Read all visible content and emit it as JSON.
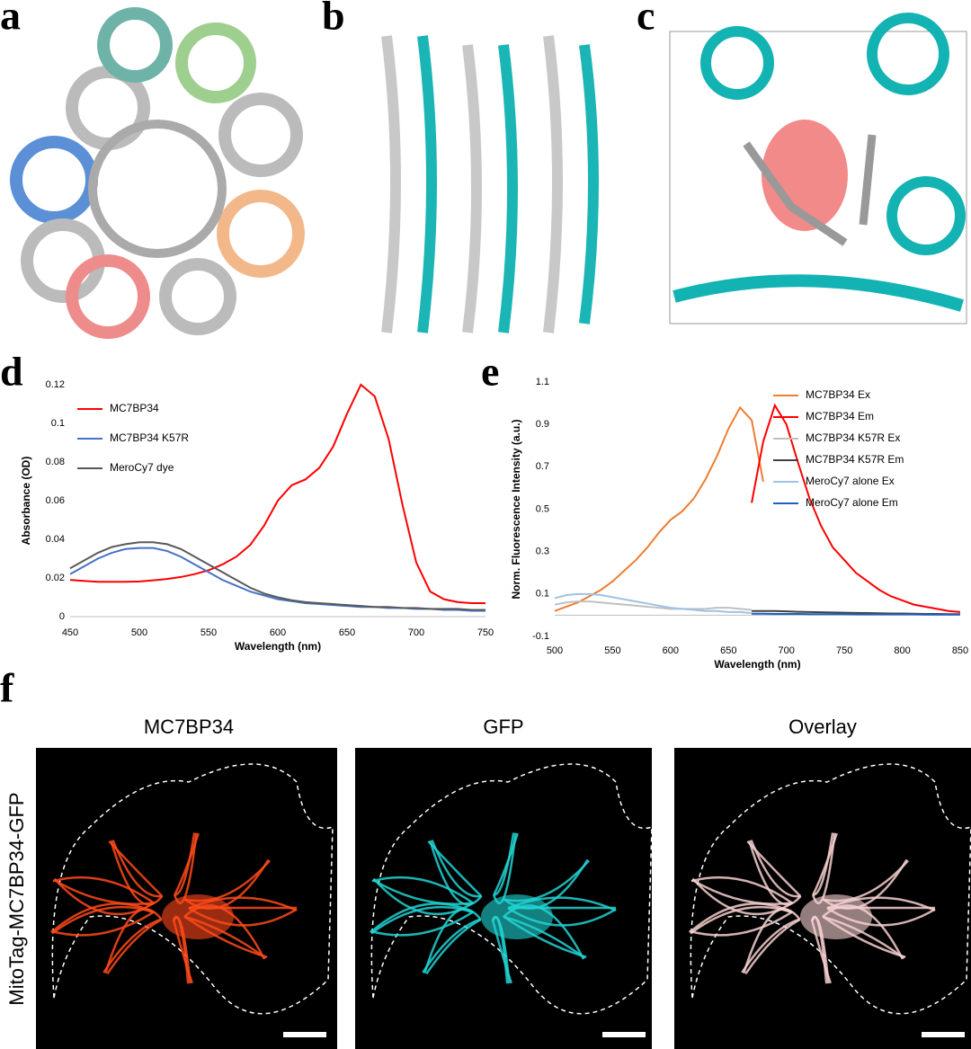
{
  "panel_labels": [
    "a",
    "b",
    "c",
    "d",
    "e",
    "f"
  ],
  "micrographs": {
    "titles": [
      "MC7BP34",
      "GFP",
      "Overlay"
    ],
    "row_label": "MitoTag-MC7BP34-GFP"
  },
  "chart_data": [
    {
      "type": "line",
      "y_label": "Absorbance (OD)",
      "x_label": "Wavelength (nm)",
      "x": [
        450,
        460,
        470,
        480,
        490,
        500,
        510,
        520,
        530,
        540,
        550,
        560,
        570,
        580,
        590,
        600,
        610,
        620,
        630,
        640,
        650,
        660,
        670,
        680,
        690,
        700,
        710,
        720,
        730,
        740,
        750
      ],
      "series": [
        {
          "name": "MC7BP34",
          "color": "#ff0000",
          "values": [
            0.019,
            0.0185,
            0.018,
            0.018,
            0.018,
            0.0182,
            0.0188,
            0.0195,
            0.0205,
            0.022,
            0.024,
            0.027,
            0.031,
            0.037,
            0.047,
            0.06,
            0.068,
            0.071,
            0.077,
            0.088,
            0.105,
            0.12,
            0.114,
            0.092,
            0.058,
            0.028,
            0.013,
            0.009,
            0.0075,
            0.007,
            0.007
          ]
        },
        {
          "name": "MC7BP34 K57R",
          "color": "#4472c4",
          "values": [
            0.022,
            0.026,
            0.03,
            0.033,
            0.035,
            0.0355,
            0.0355,
            0.034,
            0.031,
            0.027,
            0.023,
            0.019,
            0.016,
            0.013,
            0.011,
            0.009,
            0.008,
            0.007,
            0.0065,
            0.006,
            0.0055,
            0.005,
            0.005,
            0.0045,
            0.0045,
            0.004,
            0.004,
            0.0035,
            0.0035,
            0.003,
            0.003
          ]
        },
        {
          "name": "MeroCy7 dye",
          "color": "#595959",
          "values": [
            0.025,
            0.029,
            0.033,
            0.036,
            0.0375,
            0.0385,
            0.0385,
            0.0375,
            0.035,
            0.031,
            0.027,
            0.023,
            0.019,
            0.015,
            0.012,
            0.01,
            0.0085,
            0.0075,
            0.007,
            0.0065,
            0.006,
            0.0055,
            0.005,
            0.005,
            0.0045,
            0.0045,
            0.004,
            0.004,
            0.004,
            0.0035,
            0.0035
          ]
        }
      ],
      "xlim": [
        450,
        750
      ],
      "xticks": [
        450,
        500,
        550,
        600,
        650,
        700,
        750
      ],
      "ylim": [
        0,
        0.12
      ],
      "yticks": [
        0,
        0.02,
        0.04,
        0.06,
        0.08,
        0.1,
        0.12
      ],
      "grid": false,
      "legend": "upper left"
    },
    {
      "type": "line",
      "y_label": "Norm. Fluorescence Intensity (a.u.)",
      "x_label": "Wavelength (nm)",
      "x": [
        500,
        510,
        520,
        530,
        540,
        550,
        560,
        570,
        580,
        590,
        600,
        610,
        620,
        630,
        640,
        650,
        660,
        670,
        680,
        690,
        700,
        710,
        720,
        730,
        740,
        750,
        760,
        770,
        780,
        790,
        800,
        810,
        820,
        830,
        840,
        850
      ],
      "series": [
        {
          "name": "MC7BP34 Ex",
          "color": "#ed7d31",
          "values": [
            0.02,
            0.04,
            0.06,
            0.09,
            0.12,
            0.16,
            0.21,
            0.26,
            0.32,
            0.39,
            0.45,
            0.49,
            0.55,
            0.64,
            0.75,
            0.88,
            0.98,
            0.92,
            0.63,
            null,
            null,
            null,
            null,
            null,
            null,
            null,
            null,
            null,
            null,
            null,
            null,
            null,
            null,
            null,
            null,
            null
          ]
        },
        {
          "name": "MC7BP34 Em",
          "color": "#ff0000",
          "values": [
            null,
            null,
            null,
            null,
            null,
            null,
            null,
            null,
            null,
            null,
            null,
            null,
            null,
            null,
            null,
            null,
            null,
            0.53,
            0.82,
            0.99,
            0.9,
            0.72,
            0.55,
            0.42,
            0.32,
            0.26,
            0.2,
            0.16,
            0.12,
            0.09,
            0.07,
            0.05,
            0.04,
            0.03,
            0.02,
            0.015
          ]
        },
        {
          "name": "MC7BP34 K57R Ex",
          "color": "#c0c0c0",
          "values": [
            0.05,
            0.06,
            0.065,
            0.065,
            0.06,
            0.055,
            0.05,
            0.045,
            0.04,
            0.035,
            0.03,
            0.03,
            0.03,
            0.03,
            0.035,
            0.035,
            0.03,
            0.025,
            null,
            null,
            null,
            null,
            null,
            null,
            null,
            null,
            null,
            null,
            null,
            null,
            null,
            null,
            null,
            null,
            null,
            null
          ]
        },
        {
          "name": "MC7BP34 K57R Em",
          "color": "#404040",
          "values": [
            null,
            null,
            null,
            null,
            null,
            null,
            null,
            null,
            null,
            null,
            null,
            null,
            null,
            null,
            null,
            null,
            null,
            0.02,
            0.02,
            0.02,
            0.018,
            0.016,
            0.015,
            0.014,
            0.013,
            0.012,
            0.011,
            0.01,
            0.009,
            0.008,
            0.008,
            0.007,
            0.006,
            0.006,
            0.005,
            0.005
          ]
        },
        {
          "name": "MeroCy7 alone Ex",
          "color": "#9dc3e6",
          "values": [
            0.08,
            0.095,
            0.1,
            0.1,
            0.095,
            0.085,
            0.075,
            0.065,
            0.055,
            0.045,
            0.035,
            0.03,
            0.025,
            0.02,
            0.02,
            0.015,
            0.015,
            0.01,
            null,
            null,
            null,
            null,
            null,
            null,
            null,
            null,
            null,
            null,
            null,
            null,
            null,
            null,
            null,
            null,
            null,
            null
          ]
        },
        {
          "name": "MeroCy7 alone Em",
          "color": "#1f5fbf",
          "values": [
            null,
            null,
            null,
            null,
            null,
            null,
            null,
            null,
            null,
            null,
            null,
            null,
            null,
            null,
            null,
            null,
            null,
            0.007,
            0.007,
            0.006,
            0.006,
            0.006,
            0.005,
            0.005,
            0.005,
            0.005,
            0.004,
            0.004,
            0.004,
            0.004,
            0.004,
            0.004,
            0.003,
            0.003,
            0.003,
            0.003
          ]
        }
      ],
      "xlim": [
        500,
        850
      ],
      "xticks": [
        500,
        550,
        600,
        650,
        700,
        750,
        800,
        850
      ],
      "ylim": [
        -0.1,
        1.1
      ],
      "yticks": [
        -0.1,
        0.1,
        0.3,
        0.5,
        0.7,
        0.9,
        1.1
      ],
      "grid": false,
      "legend": "upper right"
    }
  ]
}
